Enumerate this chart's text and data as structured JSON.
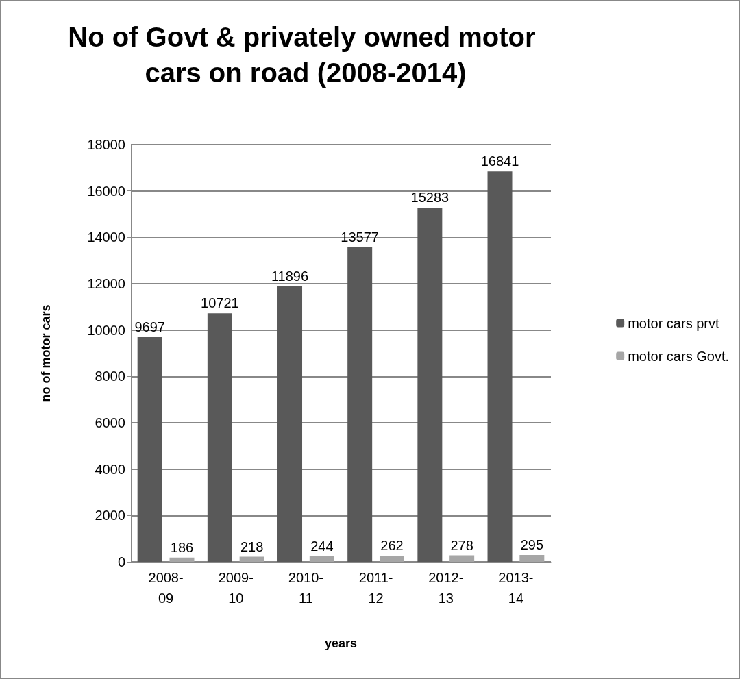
{
  "chart_data": {
    "type": "bar",
    "title": "No of Govt & privately owned motor cars on road (2008-2014)",
    "xlabel": "years",
    "ylabel": "no of motor cars",
    "categories": [
      "2008-09",
      "2009-10",
      "2010-11",
      "2011-12",
      "2012-13",
      "2013-14"
    ],
    "series": [
      {
        "name": "motor cars prvt",
        "color": "#595959",
        "values": [
          9697,
          10721,
          11896,
          13577,
          15283,
          16841
        ]
      },
      {
        "name": "motor cars Govt.",
        "color": "#a6a6a6",
        "values": [
          186,
          218,
          244,
          262,
          278,
          295
        ]
      }
    ],
    "ylim": [
      0,
      18000
    ],
    "yticks": [
      0,
      2000,
      4000,
      6000,
      8000,
      10000,
      12000,
      14000,
      16000,
      18000
    ],
    "grid": "y",
    "legend": "right",
    "data_labels": true
  }
}
